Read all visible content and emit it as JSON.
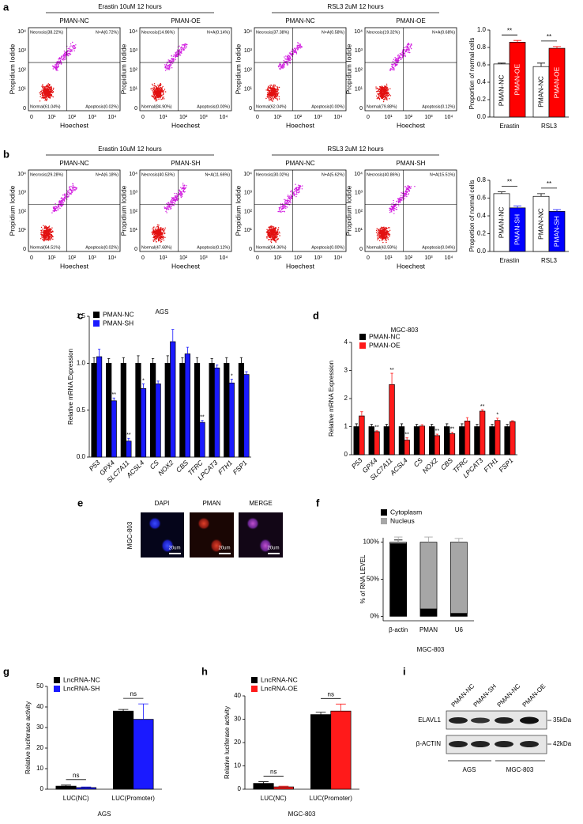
{
  "panel_labels": [
    "a",
    "b",
    "c",
    "d",
    "e",
    "f",
    "g",
    "h",
    "i"
  ],
  "flow": {
    "axis_labels": {
      "y": "Propidium Iodide",
      "x": "Hoechest"
    },
    "tick_labels": [
      "0",
      "10¹",
      "10²",
      "10³",
      "10⁴"
    ],
    "rows": [
      {
        "groups": [
          {
            "title": "Erastin 10uM 12 hours",
            "plots": [
              {
                "title": "PMAN-NC",
                "quadrants": [
                  "Necrosis(38.22%)",
                  "N+A(0.72%)",
                  "Normal(61.04%)",
                  "Apoptosis(0.02%)"
                ]
              },
              {
                "title": "PMAN-OE",
                "quadrants": [
                  "Necrosis(14.96%)",
                  "N+A(0.14%)",
                  "Normal(84.90%)",
                  "Apoptosis(0.00%)"
                ]
              }
            ]
          },
          {
            "title": "RSL3 2uM 12 hours",
            "plots": [
              {
                "title": "PMAN-NC",
                "quadrants": [
                  "Necrosis(37.38%)",
                  "N+A(0.58%)",
                  "Normal(62.04%)",
                  "Apoptosis(0.00%)"
                ]
              },
              {
                "title": "PMAN-OE",
                "quadrants": [
                  "Necrosis(19.32%)",
                  "N+A(0.68%)",
                  "Normal(79.88%)",
                  "Apoptosis(0.12%)"
                ]
              }
            ]
          }
        ]
      },
      {
        "groups": [
          {
            "title": "Erastin 10uM 12 hours",
            "plots": [
              {
                "title": "PMAN-NC",
                "quadrants": [
                  "Necrosis(29.28%)",
                  "N+A(6.18%)",
                  "Normal(64.51%)",
                  "Apoptosis(0.02%)"
                ]
              },
              {
                "title": "PMAN-SH",
                "quadrants": [
                  "Necrosis(40.53%)",
                  "N+A(11.66%)",
                  "Normal(47.68%)",
                  "Apoptosis(0.12%)"
                ]
              }
            ]
          },
          {
            "title": "RSL3 2uM 12 hours",
            "plots": [
              {
                "title": "PMAN-NC",
                "quadrants": [
                  "Necrosis(30.02%)",
                  "N+A(5.62%)",
                  "Normal(64.36%)",
                  "Apoptosis(0.00%)"
                ]
              },
              {
                "title": "PMAN-SH",
                "quadrants": [
                  "Necrosis(40.86%)",
                  "N+A(15.51%)",
                  "Normal(43.59%)",
                  "Apoptosis(0.04%)"
                ]
              }
            ]
          }
        ]
      }
    ]
  },
  "chart_data": [
    {
      "type": "bar",
      "ylabel": "Proportion of normal cells",
      "categories": [
        "Erastin",
        "RSL3"
      ],
      "legend": "inside",
      "series": [
        {
          "name": "PMAN-NC",
          "color": "#ffffff",
          "values": [
            0.61,
            0.58
          ],
          "errors": [
            0.01,
            0.04
          ]
        },
        {
          "name": "PMAN-OE",
          "color": "#ff0000",
          "values": [
            0.86,
            0.79
          ],
          "errors": [
            0.02,
            0.02
          ]
        }
      ],
      "annotations": [
        "**",
        "**"
      ],
      "ylim": [
        0,
        1.0
      ],
      "yticks": [
        {
          "value": 0,
          "label": "0.0"
        },
        0.2,
        0.4,
        0.6,
        0.8,
        {
          "value": 1,
          "label": "1.0"
        }
      ]
    },
    {
      "type": "bar",
      "ylabel": "Proportion of normal cells",
      "categories": [
        "Erastin",
        "RSL3"
      ],
      "legend": "inside",
      "series": [
        {
          "name": "PMAN-NC",
          "color": "#ffffff",
          "values": [
            0.65,
            0.62
          ],
          "errors": [
            0.02,
            0.03
          ]
        },
        {
          "name": "PMAN-SH",
          "color": "#0000ff",
          "values": [
            0.49,
            0.45
          ],
          "errors": [
            0.02,
            0.02
          ]
        }
      ],
      "annotations": [
        "**",
        "**"
      ],
      "ylim": [
        0,
        0.8
      ],
      "yticks": [
        {
          "value": 0,
          "label": "0.0"
        },
        0.2,
        0.4,
        0.6,
        0.8
      ]
    },
    {
      "type": "bar",
      "title": "AGS",
      "ylabel": "Relative mRNA Expression",
      "legend": "upper-left",
      "categories": [
        "P53",
        "GPX4",
        "SLC7A11",
        "ACSL4",
        "CS",
        "NOX2",
        "CBS",
        "TFRC",
        "LPCAT3",
        "FTH1",
        "FSP1"
      ],
      "series": [
        {
          "name": "PMAN-NC",
          "color": "#000000",
          "values": [
            1.0,
            1.0,
            1.0,
            1.0,
            1.0,
            1.0,
            1.0,
            1.0,
            1.0,
            1.0,
            1.0
          ],
          "errors": [
            0.06,
            0.05,
            0.06,
            0.08,
            0.05,
            0.08,
            0.06,
            0.06,
            0.05,
            0.06,
            0.06
          ]
        },
        {
          "name": "PMAN-SH",
          "color": "#1a1aff",
          "values": [
            1.07,
            0.6,
            0.17,
            0.73,
            0.78,
            1.23,
            1.1,
            0.37,
            0.95,
            0.79,
            0.88
          ],
          "errors": [
            0.08,
            0.03,
            0.03,
            0.05,
            0.03,
            0.13,
            0.07,
            0.02,
            0.03,
            0.04,
            0.03
          ]
        }
      ],
      "annotations": [
        null,
        "**",
        "**",
        "*",
        null,
        null,
        null,
        "**",
        null,
        "*",
        null
      ],
      "ylim": [
        0,
        1.5
      ],
      "yticks": [
        {
          "value": 0,
          "label": "0.0"
        },
        0.5,
        {
          "value": 1,
          "label": "1.0"
        },
        1.5
      ]
    },
    {
      "type": "bar",
      "title": "MGC-803",
      "ylabel": "Relative mRNA Expression",
      "legend": "upper-left",
      "categories": [
        "P53",
        "GPX4",
        "SLC7A11",
        "ACSL4",
        "CS",
        "NOX2",
        "CBS",
        "TFRC",
        "LPCAT3",
        "FTH1",
        "FSP1"
      ],
      "series": [
        {
          "name": "PMAN-NC",
          "color": "#000000",
          "values": [
            1.0,
            1.0,
            1.0,
            1.0,
            1.0,
            1.0,
            1.0,
            1.0,
            1.0,
            1.0,
            1.0
          ],
          "errors": [
            0.1,
            0.08,
            0.08,
            0.1,
            0.08,
            0.08,
            0.1,
            0.1,
            0.08,
            0.08,
            0.08
          ]
        },
        {
          "name": "PMAN-OE",
          "color": "#ff1a1a",
          "values": [
            1.38,
            0.82,
            2.5,
            0.52,
            1.02,
            0.68,
            0.75,
            1.2,
            1.55,
            1.22,
            1.18
          ],
          "errors": [
            0.15,
            0.03,
            0.4,
            0.08,
            0.05,
            0.05,
            0.05,
            0.12,
            0.05,
            0.08,
            0.03
          ]
        }
      ],
      "annotations": [
        null,
        "**",
        "**",
        "**",
        null,
        "**",
        "**",
        null,
        "**",
        "*",
        null
      ],
      "ylim": [
        0,
        4
      ],
      "yticks": [
        0,
        1,
        2,
        3,
        4
      ]
    },
    {
      "type": "bar",
      "stacked": true,
      "ylabel": "% of RNA LEVEL",
      "xlabel": "MGC-803",
      "legend": "upper-left",
      "categories": [
        "β-actin",
        "PMAN",
        "U6"
      ],
      "series": [
        {
          "name": "Cytoplasm",
          "color": "#000000",
          "values": [
            98,
            10,
            4
          ],
          "errors": [
            5,
            9,
            1
          ]
        },
        {
          "name": "Nucleus",
          "color": "#a6a6a6",
          "values": [
            2,
            90,
            96
          ],
          "errors": [
            7,
            7,
            5
          ]
        }
      ],
      "ylim": [
        -6,
        106
      ],
      "yticks": [
        {
          "value": 0,
          "label": "0%"
        },
        {
          "value": 50,
          "label": "50%"
        },
        {
          "value": 100,
          "label": "100%"
        }
      ]
    },
    {
      "type": "bar",
      "ylabel": "Relative luciferase activity",
      "xlabel": "AGS",
      "legend": "upper-left",
      "categories": [
        "LUC(NC)",
        "LUC(Promoter)"
      ],
      "series": [
        {
          "name": "LncRNA-NC",
          "color": "#000000",
          "values": [
            1.5,
            38
          ],
          "errors": [
            0.5,
            0.8
          ]
        },
        {
          "name": "LncRNA-SH",
          "color": "#1a1aff",
          "values": [
            0.8,
            34
          ],
          "errors": [
            0.3,
            7.5
          ]
        }
      ],
      "annotations": [
        "ns",
        "ns"
      ],
      "ylim": [
        0,
        50
      ],
      "yticks": [
        0,
        10,
        20,
        30,
        40,
        50
      ]
    },
    {
      "type": "bar",
      "ylabel": "Relative luciferase activity",
      "xlabel": "MGC-803",
      "legend": "upper-left",
      "categories": [
        "LUC(NC)",
        "LUC(Promoter)"
      ],
      "series": [
        {
          "name": "LncRNA-NC",
          "color": "#000000",
          "values": [
            2.5,
            32
          ],
          "errors": [
            0.7,
            1
          ]
        },
        {
          "name": "LncRNA-OE",
          "color": "#ff1a1a",
          "values": [
            1,
            33.5
          ],
          "errors": [
            0.3,
            3
          ]
        }
      ],
      "annotations": [
        "ns",
        "ns"
      ],
      "ylim": [
        0,
        40
      ],
      "yticks": [
        0,
        10,
        20,
        30,
        40
      ]
    }
  ],
  "images": {
    "labels": [
      "DAPI",
      "PMAN",
      "MERGE"
    ],
    "row_label": "MGC-803",
    "scale": "20um"
  },
  "blot": {
    "lanes": [
      "PMAN-NC",
      "PMAN-SH",
      "PMAN-NC",
      "PMAN-OE"
    ],
    "rows": [
      "ELAVL1",
      "β-ACTIN"
    ],
    "sizes": [
      "35kDa",
      "42kDa"
    ],
    "groups": [
      "AGS",
      "MGC-803"
    ]
  }
}
